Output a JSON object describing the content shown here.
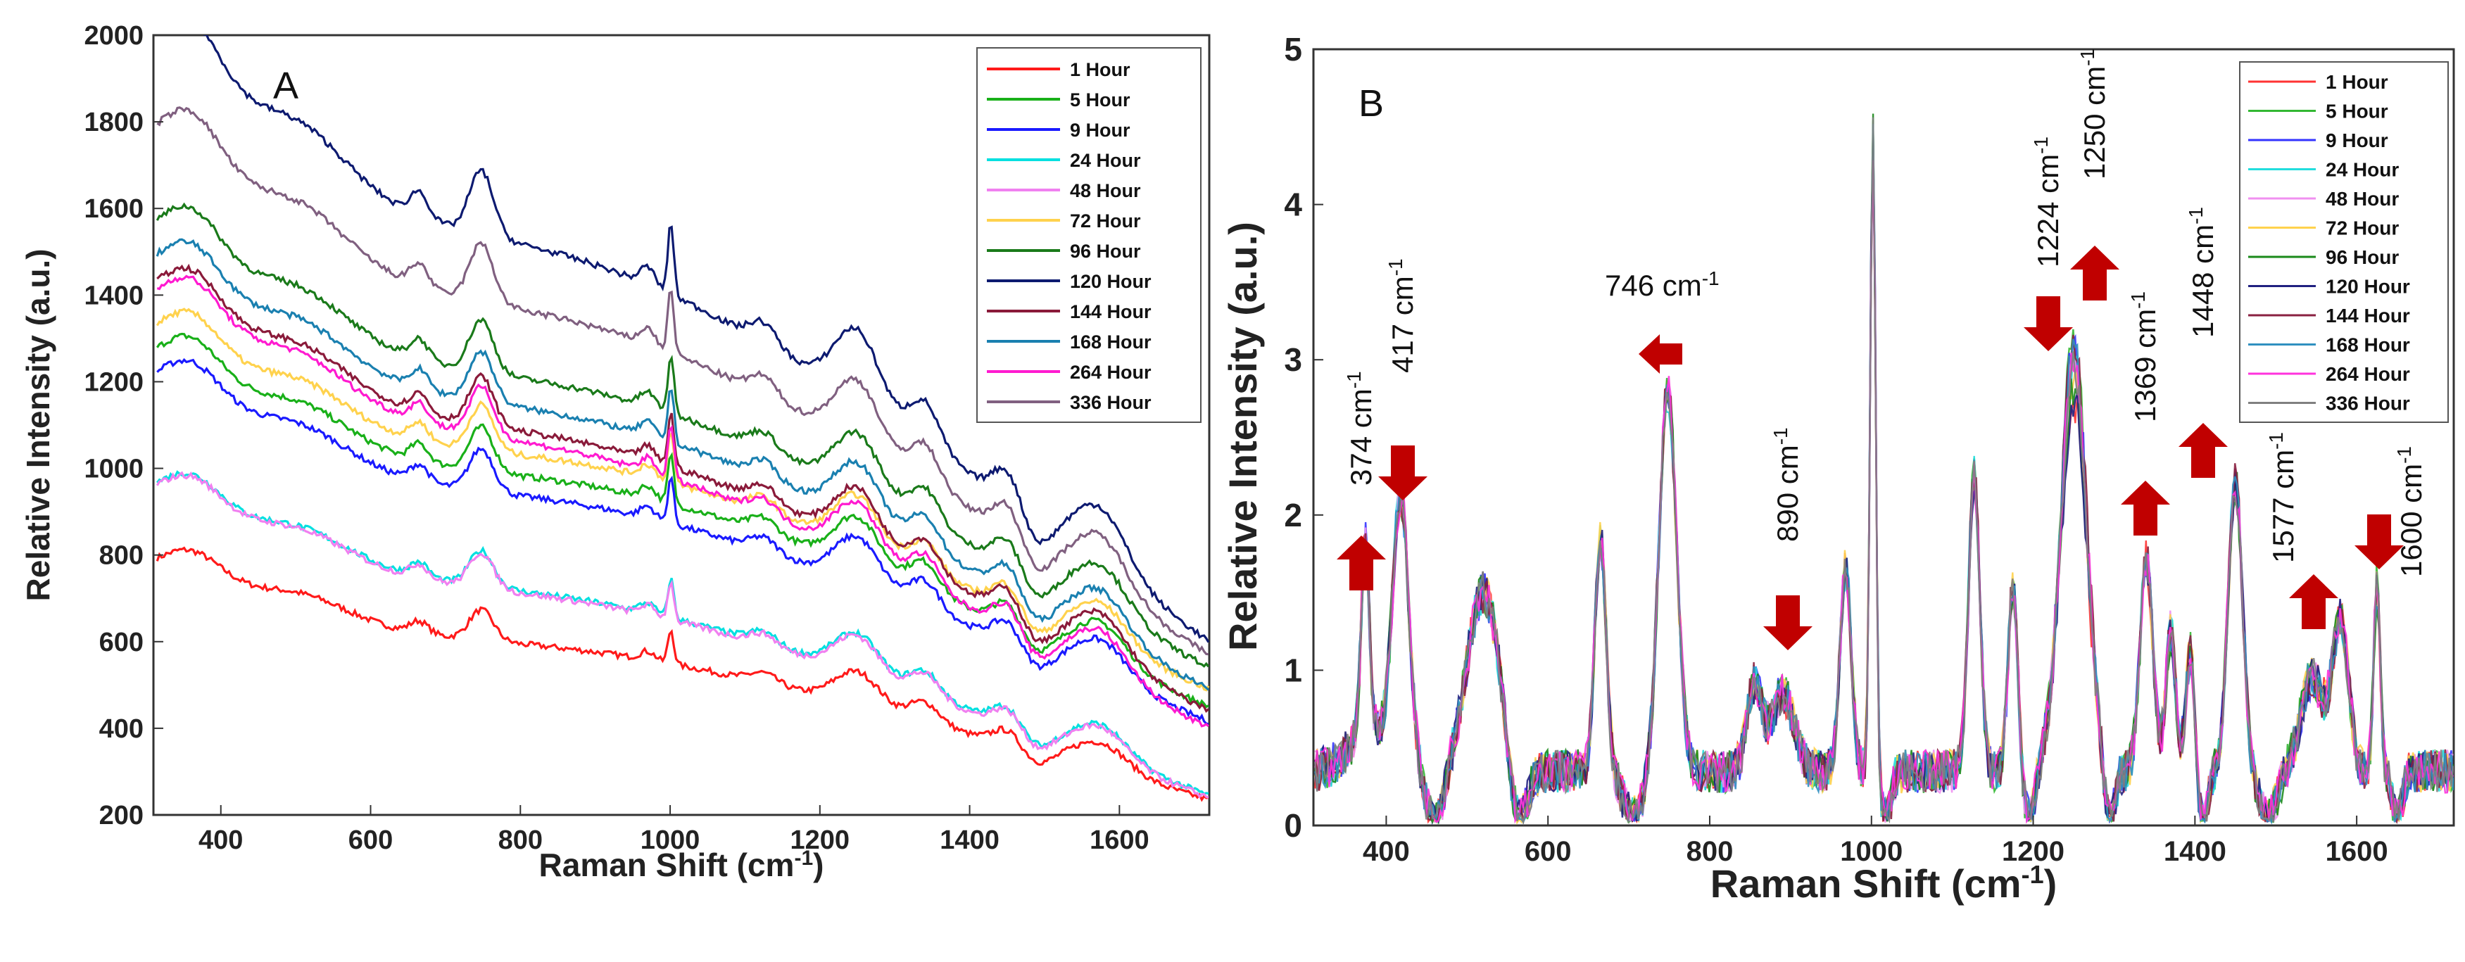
{
  "chart_data": [
    {
      "panel": "A",
      "type": "line",
      "xlabel": "Raman Shift (cm-1)",
      "ylabel": "Relative Intensity (a.u.)",
      "xlim": [
        310,
        1720
      ],
      "ylim": [
        200,
        2000
      ],
      "xticks": [
        400,
        600,
        800,
        1000,
        1200,
        1400,
        1600
      ],
      "yticks": [
        200,
        400,
        600,
        800,
        1000,
        1200,
        1400,
        1600,
        1800,
        2000
      ],
      "legend_position": "top-right",
      "series": [
        {
          "name": "1 Hour",
          "color": "#ff1a1a",
          "base": 780,
          "end": 235
        },
        {
          "name": "5 Hour",
          "color": "#19b019",
          "base": 1265,
          "end": 450
        },
        {
          "name": "9 Hour",
          "color": "#1a1aff",
          "base": 1210,
          "end": 415
        },
        {
          "name": "24 Hour",
          "color": "#00e0e0",
          "base": 955,
          "end": 245
        },
        {
          "name": "48 Hour",
          "color": "#f080f0",
          "base": 950,
          "end": 240
        },
        {
          "name": "72 Hour",
          "color": "#ffd24d",
          "base": 1320,
          "end": 490
        },
        {
          "name": "96 Hour",
          "color": "#1a7a1a",
          "base": 1560,
          "end": 540
        },
        {
          "name": "120 Hour",
          "color": "#0d1a70",
          "base": 1990,
          "end": 600
        },
        {
          "name": "144 Hour",
          "color": "#8a1a3a",
          "base": 1420,
          "end": 440
        },
        {
          "name": "168 Hour",
          "color": "#1a80b0",
          "base": 1480,
          "end": 490
        },
        {
          "name": "264 Hour",
          "color": "#ff1ad0",
          "base": 1400,
          "end": 400
        },
        {
          "name": "336 Hour",
          "color": "#806080",
          "base": 1780,
          "end": 570
        }
      ]
    },
    {
      "panel": "B",
      "type": "line",
      "xlabel": "Raman Shift (cm-1)",
      "ylabel": "Relative Intensity (a.u.)",
      "xlim": [
        310,
        1720
      ],
      "ylim": [
        0,
        5
      ],
      "xticks": [
        400,
        600,
        800,
        1000,
        1200,
        1400,
        1600
      ],
      "yticks": [
        0,
        1,
        2,
        3,
        4,
        5
      ],
      "legend_position": "top-right",
      "series": [
        {
          "name": "1 Hour",
          "color": "#ff3333"
        },
        {
          "name": "5 Hour",
          "color": "#33b833"
        },
        {
          "name": "9 Hour",
          "color": "#3333ff"
        },
        {
          "name": "24 Hour",
          "color": "#22dddd"
        },
        {
          "name": "48 Hour",
          "color": "#f090f0"
        },
        {
          "name": "72 Hour",
          "color": "#ffd24d"
        },
        {
          "name": "96 Hour",
          "color": "#1a8a1a"
        },
        {
          "name": "120 Hour",
          "color": "#202080"
        },
        {
          "name": "144 Hour",
          "color": "#8a2040"
        },
        {
          "name": "168 Hour",
          "color": "#3090c0"
        },
        {
          "name": "264 Hour",
          "color": "#ff33dd"
        },
        {
          "name": "336 Hour",
          "color": "#808080"
        }
      ],
      "peaks": [
        {
          "x": 374,
          "label": "374 cm-1",
          "direction": "up",
          "y": 1.4
        },
        {
          "x": 417,
          "label": "417 cm-1",
          "direction": "down",
          "y": 2.0
        },
        {
          "x": 746,
          "label": "746 cm-1",
          "direction": "left",
          "y": 3.0
        },
        {
          "x": 890,
          "label": "890 cm-1",
          "direction": "down",
          "y": 1.0
        },
        {
          "x": 1224,
          "label": "1224 cm-1",
          "direction": "down",
          "y": 2.9
        },
        {
          "x": 1250,
          "label": "1250 cm-1",
          "direction": "up",
          "y": 3.3
        },
        {
          "x": 1369,
          "label": "1369 cm-1",
          "direction": "up",
          "y": 1.8
        },
        {
          "x": 1448,
          "label": "1448 cm-1",
          "direction": "up",
          "y": 2.3
        },
        {
          "x": 1577,
          "label": "1577 cm-1",
          "direction": "up",
          "y": 1.1
        },
        {
          "x": 1600,
          "label": "1600 cm-1",
          "direction": "down",
          "y": 1.6
        }
      ]
    }
  ],
  "panels": {
    "A": {
      "letter": "A"
    },
    "B": {
      "letter": "B"
    }
  }
}
